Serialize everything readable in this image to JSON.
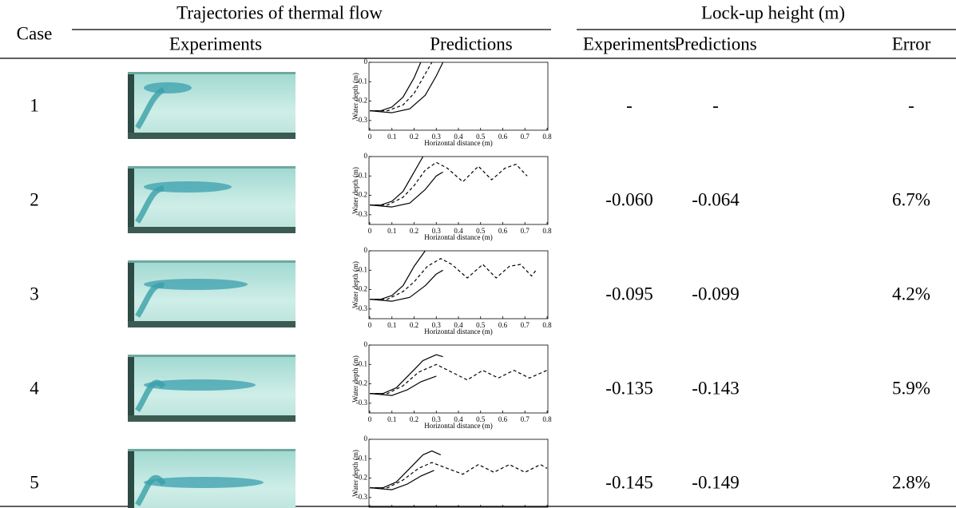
{
  "header": {
    "case": "Case",
    "trajectories": "Trajectories of thermal flow",
    "lockup": "Lock-up height (m)",
    "columns": [
      "Experiments",
      "Predictions",
      "Experiments",
      "Predictions",
      "Error"
    ]
  },
  "prediction_axes": {
    "xlabel": "Horizontal distance (m)",
    "ylabel": "Water depth (m)",
    "xlim": [
      0,
      0.8
    ],
    "ylim": [
      -0.35,
      0
    ],
    "xticks": [
      0,
      0.1,
      0.2,
      0.3,
      0.4,
      0.5,
      0.6,
      0.7,
      0.8
    ],
    "yticks": [
      0,
      -0.1,
      -0.2,
      -0.3
    ]
  },
  "rows": [
    {
      "case": "1",
      "experiment": "-",
      "prediction": "-",
      "error": "-",
      "curves": [
        {
          "dash": false,
          "x": [
            0,
            0.05,
            0.1,
            0.15,
            0.2,
            0.23
          ],
          "y": [
            -0.25,
            -0.25,
            -0.23,
            -0.18,
            -0.08,
            0
          ]
        },
        {
          "dash": true,
          "x": [
            0,
            0.08,
            0.15,
            0.2,
            0.25,
            0.28
          ],
          "y": [
            -0.25,
            -0.25,
            -0.22,
            -0.16,
            -0.06,
            0
          ]
        },
        {
          "dash": false,
          "x": [
            0,
            0.1,
            0.18,
            0.25,
            0.3,
            0.33
          ],
          "y": [
            -0.25,
            -0.26,
            -0.24,
            -0.17,
            -0.07,
            0
          ]
        }
      ]
    },
    {
      "case": "2",
      "experiment": "-0.060",
      "prediction": "-0.064",
      "error": "6.7%",
      "curves": [
        {
          "dash": false,
          "x": [
            0,
            0.05,
            0.1,
            0.15,
            0.2,
            0.24
          ],
          "y": [
            -0.25,
            -0.25,
            -0.23,
            -0.18,
            -0.08,
            0
          ]
        },
        {
          "dash": true,
          "x": [
            0,
            0.08,
            0.15,
            0.2,
            0.25,
            0.3,
            0.35,
            0.42,
            0.49,
            0.55,
            0.61,
            0.66,
            0.71
          ],
          "y": [
            -0.25,
            -0.25,
            -0.21,
            -0.15,
            -0.07,
            -0.03,
            -0.06,
            -0.13,
            -0.05,
            -0.12,
            -0.06,
            -0.04,
            -0.1
          ]
        },
        {
          "dash": false,
          "x": [
            0,
            0.1,
            0.18,
            0.25,
            0.3,
            0.33
          ],
          "y": [
            -0.25,
            -0.26,
            -0.24,
            -0.17,
            -0.1,
            -0.08
          ]
        }
      ]
    },
    {
      "case": "3",
      "experiment": "-0.095",
      "prediction": "-0.099",
      "error": "4.2%",
      "curves": [
        {
          "dash": false,
          "x": [
            0,
            0.05,
            0.1,
            0.15,
            0.2,
            0.25
          ],
          "y": [
            -0.25,
            -0.25,
            -0.23,
            -0.18,
            -0.08,
            0
          ]
        },
        {
          "dash": true,
          "x": [
            0,
            0.08,
            0.15,
            0.2,
            0.26,
            0.32,
            0.37,
            0.44,
            0.51,
            0.57,
            0.63,
            0.68,
            0.73,
            0.75
          ],
          "y": [
            -0.25,
            -0.25,
            -0.21,
            -0.16,
            -0.08,
            -0.04,
            -0.07,
            -0.14,
            -0.07,
            -0.14,
            -0.08,
            -0.07,
            -0.13,
            -0.1
          ]
        },
        {
          "dash": false,
          "x": [
            0,
            0.1,
            0.18,
            0.25,
            0.3,
            0.33
          ],
          "y": [
            -0.25,
            -0.26,
            -0.24,
            -0.18,
            -0.12,
            -0.1
          ]
        }
      ]
    },
    {
      "case": "4",
      "experiment": "-0.135",
      "prediction": "-0.143",
      "error": "5.9%",
      "curves": [
        {
          "dash": false,
          "x": [
            0,
            0.06,
            0.12,
            0.18,
            0.24,
            0.3,
            0.33
          ],
          "y": [
            -0.25,
            -0.25,
            -0.22,
            -0.15,
            -0.08,
            -0.05,
            -0.06
          ]
        },
        {
          "dash": true,
          "x": [
            0,
            0.08,
            0.15,
            0.22,
            0.3,
            0.37,
            0.44,
            0.51,
            0.58,
            0.65,
            0.72,
            0.8
          ],
          "y": [
            -0.25,
            -0.25,
            -0.21,
            -0.14,
            -0.1,
            -0.14,
            -0.18,
            -0.13,
            -0.17,
            -0.13,
            -0.17,
            -0.13
          ]
        },
        {
          "dash": false,
          "x": [
            0,
            0.1,
            0.17,
            0.23,
            0.3
          ],
          "y": [
            -0.25,
            -0.26,
            -0.23,
            -0.19,
            -0.16
          ]
        }
      ]
    },
    {
      "case": "5",
      "experiment": "-0.145",
      "prediction": "-0.149",
      "error": "2.8%",
      "curves": [
        {
          "dash": false,
          "x": [
            0,
            0.06,
            0.12,
            0.18,
            0.24,
            0.28,
            0.32
          ],
          "y": [
            -0.25,
            -0.25,
            -0.22,
            -0.15,
            -0.08,
            -0.06,
            -0.08
          ]
        },
        {
          "dash": true,
          "x": [
            0,
            0.08,
            0.15,
            0.22,
            0.28,
            0.35,
            0.42,
            0.49,
            0.56,
            0.63,
            0.7,
            0.77,
            0.8
          ],
          "y": [
            -0.25,
            -0.25,
            -0.21,
            -0.15,
            -0.12,
            -0.15,
            -0.18,
            -0.13,
            -0.17,
            -0.13,
            -0.17,
            -0.13,
            -0.15
          ]
        },
        {
          "dash": false,
          "x": [
            0,
            0.1,
            0.17,
            0.23,
            0.29
          ],
          "y": [
            -0.25,
            -0.26,
            -0.23,
            -0.19,
            -0.16
          ]
        }
      ]
    }
  ]
}
